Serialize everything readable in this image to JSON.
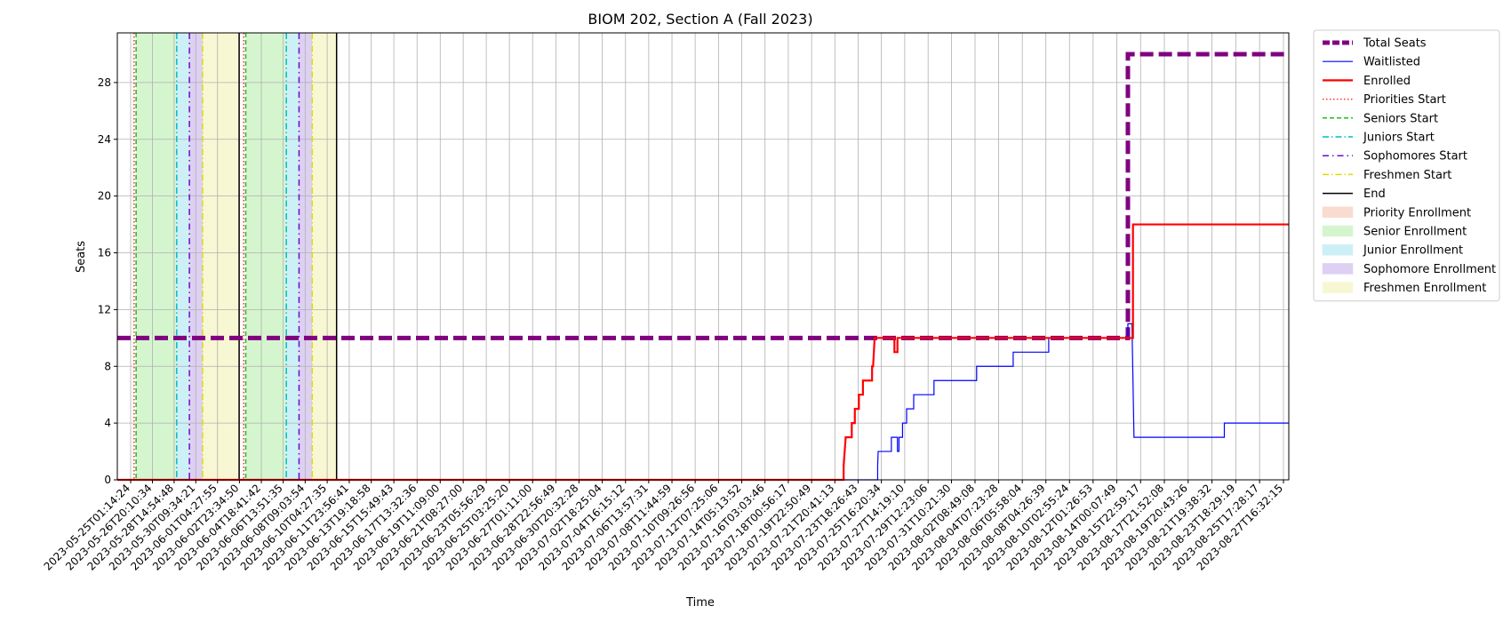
{
  "chart_data": {
    "type": "line",
    "title": "BIOM 202, Section A (Fall 2023)",
    "xlabel": "Time",
    "ylabel": "Seats",
    "x_range": [
      "2023-05-23T23:00:00",
      "2023-08-28T03:00:00"
    ],
    "ylim": [
      0,
      31.5
    ],
    "y_ticks": [
      0,
      4,
      8,
      12,
      16,
      20,
      24,
      28
    ],
    "grid": true,
    "legend_position": "outside-right",
    "x_ticks": [
      "2023-05-25T01:14:24",
      "2023-05-26T20:10:34",
      "2023-05-28T14:54:48",
      "2023-05-30T09:34:21",
      "2023-06-01T04:27:55",
      "2023-06-02T23:34:50",
      "2023-06-04T18:41:42",
      "2023-06-06T13:51:35",
      "2023-06-08T09:03:54",
      "2023-06-10T04:27:35",
      "2023-06-11T23:56:41",
      "2023-06-13T19:18:58",
      "2023-06-15T15:49:43",
      "2023-06-17T13:32:36",
      "2023-06-19T11:09:00",
      "2023-06-21T08:27:00",
      "2023-06-23T05:56:29",
      "2023-06-25T03:25:20",
      "2023-06-27T01:11:00",
      "2023-06-28T22:56:49",
      "2023-06-30T20:32:28",
      "2023-07-02T18:25:04",
      "2023-07-04T16:15:12",
      "2023-07-06T13:57:31",
      "2023-07-08T11:44:59",
      "2023-07-10T09:26:56",
      "2023-07-12T07:25:06",
      "2023-07-14T05:13:52",
      "2023-07-16T03:03:46",
      "2023-07-18T00:56:17",
      "2023-07-19T22:50:49",
      "2023-07-21T20:41:13",
      "2023-07-23T18:26:43",
      "2023-07-25T16:20:34",
      "2023-07-27T14:19:10",
      "2023-07-29T12:23:06",
      "2023-07-31T10:21:30",
      "2023-08-02T08:49:08",
      "2023-08-04T07:23:28",
      "2023-08-06T05:58:04",
      "2023-08-08T04:26:39",
      "2023-08-10T02:55:24",
      "2023-08-12T01:26:53",
      "2023-08-14T00:07:49",
      "2023-08-15T22:59:17",
      "2023-08-17T21:52:08",
      "2023-08-19T20:43:26",
      "2023-08-21T19:38:32",
      "2023-08-23T18:29:19",
      "2023-08-25T17:28:17",
      "2023-08-27T16:32:15"
    ],
    "periods": [
      {
        "legend": "Senior Enrollment",
        "color": "#d5f5cf",
        "start": "2023-05-25T12:00:00",
        "end": "2023-05-28T20:00:00"
      },
      {
        "legend": "Junior Enrollment",
        "color": "#cdf0f6",
        "start": "2023-05-28T20:00:00",
        "end": "2023-05-29T21:00:00"
      },
      {
        "legend": "Sophomore Enrollment",
        "color": "#ddd0f3",
        "start": "2023-05-29T21:00:00",
        "end": "2023-05-30T23:00:00"
      },
      {
        "legend": "Freshmen Enrollment",
        "color": "#f7f7d3",
        "start": "2023-05-30T23:00:00",
        "end": "2023-06-02T23:00:00"
      },
      {
        "legend": "Senior Enrollment",
        "color": "#d5f5cf",
        "start": "2023-06-03T12:00:00",
        "end": "2023-06-06T20:00:00"
      },
      {
        "legend": "Junior Enrollment",
        "color": "#cdf0f6",
        "start": "2023-06-06T20:00:00",
        "end": "2023-06-07T21:00:00"
      },
      {
        "legend": "Sophomore Enrollment",
        "color": "#ddd0f3",
        "start": "2023-06-07T21:00:00",
        "end": "2023-06-08T23:00:00"
      },
      {
        "legend": "Freshmen Enrollment",
        "color": "#f7f7d3",
        "start": "2023-06-08T23:00:00",
        "end": "2023-06-10T23:00:00"
      }
    ],
    "markers": [
      {
        "legend": "Priorities Start",
        "color": "#ff3030",
        "dash": "1.5,2.5",
        "width": 1.5,
        "times": [
          "2023-05-25T08:00:00",
          "2023-06-03T08:00:00"
        ]
      },
      {
        "legend": "Seniors Start",
        "color": "#22bb22",
        "dash": "5,3",
        "width": 1.5,
        "times": [
          "2023-05-25T12:00:00",
          "2023-06-03T12:00:00"
        ]
      },
      {
        "legend": "Juniors Start",
        "color": "#00bbcc",
        "dash": "7,3,1.5,3",
        "width": 1.5,
        "times": [
          "2023-05-28T20:00:00",
          "2023-06-06T20:00:00"
        ]
      },
      {
        "legend": "Sophomores Start",
        "color": "#6a0dcc",
        "dash": "7,4,1.5,4",
        "width": 1.5,
        "times": [
          "2023-05-29T21:00:00",
          "2023-06-07T21:00:00"
        ]
      },
      {
        "legend": "Freshmen Start",
        "color": "#dddd00",
        "dash": "7,3,1.5,3",
        "width": 1.5,
        "times": [
          "2023-05-30T23:00:00",
          "2023-06-08T23:00:00"
        ]
      },
      {
        "legend": "End",
        "color": "#000000",
        "dash": "",
        "width": 1.5,
        "times": [
          "2023-06-02T23:00:00",
          "2023-06-10T23:00:00"
        ]
      }
    ],
    "series": [
      {
        "name": "Total Seats",
        "color": "#800080",
        "width": 5,
        "dash": "15,6",
        "points": [
          [
            "2023-05-23T23:00:00",
            10
          ],
          [
            "2023-08-14T22:00:00",
            10
          ],
          [
            "2023-08-14T22:00:00",
            30
          ],
          [
            "2023-08-28T03:00:00",
            30
          ]
        ]
      },
      {
        "name": "Waitlisted",
        "color": "#0000ff",
        "width": 1.2,
        "dash": "",
        "points": [
          [
            "2023-05-23T23:00:00",
            0
          ],
          [
            "2023-07-25T09:00:00",
            0
          ],
          [
            "2023-07-25T09:00:00",
            1
          ],
          [
            "2023-07-25T10:00:00",
            2
          ],
          [
            "2023-07-26T12:00:00",
            2
          ],
          [
            "2023-07-26T12:00:00",
            3
          ],
          [
            "2023-07-27T00:00:00",
            3
          ],
          [
            "2023-07-27T00:00:00",
            2
          ],
          [
            "2023-07-27T03:00:00",
            2
          ],
          [
            "2023-07-27T03:00:00",
            3
          ],
          [
            "2023-07-27T10:00:00",
            3
          ],
          [
            "2023-07-27T10:00:00",
            4
          ],
          [
            "2023-07-27T18:00:00",
            4
          ],
          [
            "2023-07-27T18:00:00",
            5
          ],
          [
            "2023-07-28T08:00:00",
            5
          ],
          [
            "2023-07-28T08:00:00",
            6
          ],
          [
            "2023-07-30T00:00:00",
            6
          ],
          [
            "2023-07-30T00:00:00",
            7
          ],
          [
            "2023-08-02T12:00:00",
            7
          ],
          [
            "2023-08-02T12:00:00",
            8
          ],
          [
            "2023-08-05T12:00:00",
            8
          ],
          [
            "2023-08-05T12:00:00",
            9
          ],
          [
            "2023-08-08T10:00:00",
            9
          ],
          [
            "2023-08-08T10:00:00",
            10
          ],
          [
            "2023-08-14T22:00:00",
            10
          ],
          [
            "2023-08-14T22:00:00",
            11
          ],
          [
            "2023-08-15T06:00:00",
            11
          ],
          [
            "2023-08-15T10:00:00",
            3
          ],
          [
            "2023-08-22T20:00:00",
            3
          ],
          [
            "2023-08-22T20:00:00",
            4
          ],
          [
            "2023-08-28T03:00:00",
            4
          ]
        ]
      },
      {
        "name": "Enrolled",
        "color": "#ff0000",
        "width": 2.2,
        "dash": "",
        "points": [
          [
            "2023-05-23T23:00:00",
            0
          ],
          [
            "2023-07-22T14:00:00",
            0
          ],
          [
            "2023-07-22T14:00:00",
            1
          ],
          [
            "2023-07-22T18:00:00",
            3
          ],
          [
            "2023-07-23T06:00:00",
            3
          ],
          [
            "2023-07-23T06:00:00",
            4
          ],
          [
            "2023-07-23T12:00:00",
            4
          ],
          [
            "2023-07-23T12:00:00",
            5
          ],
          [
            "2023-07-23T20:00:00",
            5
          ],
          [
            "2023-07-23T20:00:00",
            6
          ],
          [
            "2023-07-24T04:00:00",
            6
          ],
          [
            "2023-07-24T04:00:00",
            7
          ],
          [
            "2023-07-24T22:00:00",
            7
          ],
          [
            "2023-07-24T22:00:00",
            8
          ],
          [
            "2023-07-25T00:00:00",
            8
          ],
          [
            "2023-07-25T03:00:00",
            10
          ],
          [
            "2023-07-26T18:00:00",
            10
          ],
          [
            "2023-07-26T18:00:00",
            9
          ],
          [
            "2023-07-27T00:00:00",
            9
          ],
          [
            "2023-07-27T00:00:00",
            10
          ],
          [
            "2023-08-15T08:00:00",
            10
          ],
          [
            "2023-08-15T08:00:00",
            18
          ],
          [
            "2023-08-28T03:00:00",
            18
          ]
        ]
      }
    ],
    "legend": [
      {
        "label": "Total Seats",
        "kind": "line",
        "color": "#800080",
        "dash": "8,3",
        "width": 5
      },
      {
        "label": "Waitlisted",
        "kind": "line",
        "color": "#0000ff",
        "dash": "",
        "width": 1.2
      },
      {
        "label": "Enrolled",
        "kind": "line",
        "color": "#ff0000",
        "dash": "",
        "width": 2.2
      },
      {
        "label": "Priorities Start",
        "kind": "line",
        "color": "#ff3030",
        "dash": "1.5,2.5",
        "width": 1.5
      },
      {
        "label": "Seniors Start",
        "kind": "line",
        "color": "#22bb22",
        "dash": "5,3",
        "width": 1.5
      },
      {
        "label": "Juniors Start",
        "kind": "line",
        "color": "#00bbcc",
        "dash": "7,3,1.5,3",
        "width": 1.5
      },
      {
        "label": "Sophomores Start",
        "kind": "line",
        "color": "#6a0dcc",
        "dash": "7,4,1.5,4",
        "width": 1.5
      },
      {
        "label": "Freshmen Start",
        "kind": "line",
        "color": "#dddd00",
        "dash": "7,3,1.5,3",
        "width": 1.5
      },
      {
        "label": "End",
        "kind": "line",
        "color": "#000000",
        "dash": "",
        "width": 1.5
      },
      {
        "label": "Priority Enrollment",
        "kind": "patch",
        "color": "#f9dccf"
      },
      {
        "label": "Senior Enrollment",
        "kind": "patch",
        "color": "#d5f5cf"
      },
      {
        "label": "Junior Enrollment",
        "kind": "patch",
        "color": "#cdf0f6"
      },
      {
        "label": "Sophomore Enrollment",
        "kind": "patch",
        "color": "#ddd0f3"
      },
      {
        "label": "Freshmen Enrollment",
        "kind": "patch",
        "color": "#f7f7d3"
      }
    ]
  }
}
